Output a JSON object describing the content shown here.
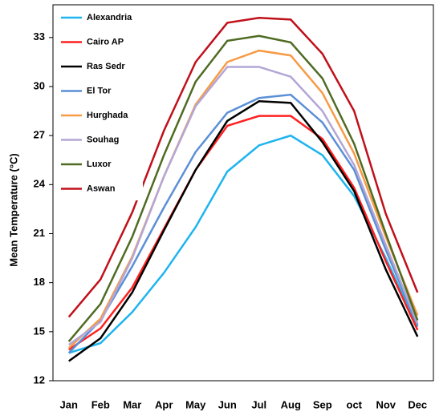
{
  "chart_data": {
    "type": "line",
    "y_label": "Mean Temperature (°C)",
    "categories": [
      "Jan",
      "Feb",
      "Mar",
      "Apr",
      "May",
      "Jun",
      "Jul",
      "Aug",
      "Sep",
      "oct",
      "Nov",
      "Dec"
    ],
    "ylim": [
      12,
      35
    ],
    "yticks": [
      12,
      15,
      18,
      21,
      24,
      27,
      30,
      33
    ],
    "legend": "top-left",
    "series": [
      {
        "name": "Alexandria",
        "color": "#1eb4ef",
        "values": [
          13.7,
          14.3,
          16.2,
          18.6,
          21.4,
          24.8,
          26.4,
          27.0,
          25.8,
          23.3,
          19.5,
          15.3
        ]
      },
      {
        "name": "Cairo AP",
        "color": "#ff2020",
        "values": [
          13.9,
          15.2,
          17.7,
          21.3,
          24.9,
          27.6,
          28.2,
          28.2,
          26.8,
          23.8,
          19.3,
          15.1
        ]
      },
      {
        "name": "Ras Sedr",
        "color": "#000000",
        "values": [
          13.2,
          14.6,
          17.4,
          21.2,
          24.9,
          27.9,
          29.1,
          29.0,
          26.6,
          23.6,
          18.8,
          14.7
        ]
      },
      {
        "name": "El Tor",
        "color": "#5b8fd6",
        "values": [
          13.7,
          15.7,
          19.0,
          22.6,
          26.0,
          28.4,
          29.3,
          29.5,
          27.8,
          24.9,
          20.0,
          15.4
        ]
      },
      {
        "name": "Hurghada",
        "color": "#f79b46",
        "values": [
          14.0,
          15.8,
          19.6,
          24.5,
          28.9,
          31.5,
          32.2,
          31.9,
          29.6,
          25.9,
          20.8,
          16.0
        ]
      },
      {
        "name": "Souhag",
        "color": "#b3a6d6",
        "values": [
          14.2,
          15.6,
          19.5,
          24.5,
          28.8,
          31.2,
          31.2,
          30.6,
          28.5,
          25.2,
          20.3,
          15.5
        ]
      },
      {
        "name": "Luxor",
        "color": "#4f6b22",
        "values": [
          14.4,
          16.7,
          20.8,
          25.8,
          30.3,
          32.8,
          33.1,
          32.7,
          30.5,
          26.5,
          21.0,
          15.7
        ]
      },
      {
        "name": "Aswan",
        "color": "#c0101a",
        "values": [
          15.9,
          18.2,
          22.3,
          27.3,
          31.5,
          33.9,
          34.2,
          34.1,
          32.0,
          28.5,
          22.2,
          17.4
        ]
      }
    ]
  }
}
